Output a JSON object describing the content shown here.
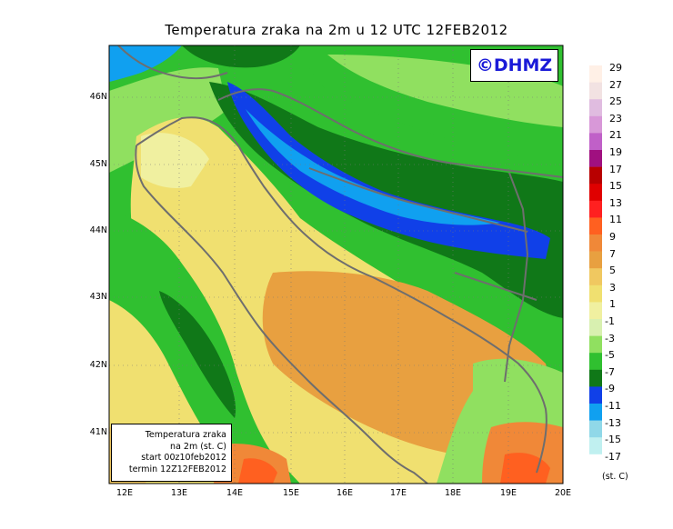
{
  "title": "Temperatura zraka na 2m u 12 UTC 12FEB2012",
  "logo": "©DHMZ",
  "infobox": {
    "line1": "Temperatura zraka",
    "line2": "na 2m (st. C)",
    "line3": "start 00z10feb2012",
    "line4": "termin 12Z12FEB2012"
  },
  "lat_labels": [
    "46N",
    "45N",
    "44N",
    "43N",
    "42N",
    "41N"
  ],
  "lon_labels": [
    "12E",
    "13E",
    "14E",
    "15E",
    "16E",
    "17E",
    "18E",
    "19E",
    "20E"
  ],
  "colorbar": {
    "labels": [
      "29",
      "27",
      "25",
      "23",
      "21",
      "19",
      "17",
      "15",
      "13",
      "11",
      "9",
      "7",
      "5",
      "3",
      "1",
      "-1",
      "-3",
      "-5",
      "-7",
      "-9",
      "-11",
      "-13",
      "-15",
      "-17"
    ],
    "colors": [
      "#fff0e6",
      "#f2e2e2",
      "#e0bce0",
      "#d898d8",
      "#c060c8",
      "#a01080",
      "#b80000",
      "#e00000",
      "#ff2020",
      "#ff6020",
      "#f08838",
      "#e8a040",
      "#f0c860",
      "#f0e070",
      "#f0f0a0",
      "#d8f0b0",
      "#90e060",
      "#30c030",
      "#107818",
      "#1040e8",
      "#10a0f0",
      "#90d8e8",
      "#c0f0f0",
      "#ffffff"
    ],
    "units": "(st. C)"
  }
}
